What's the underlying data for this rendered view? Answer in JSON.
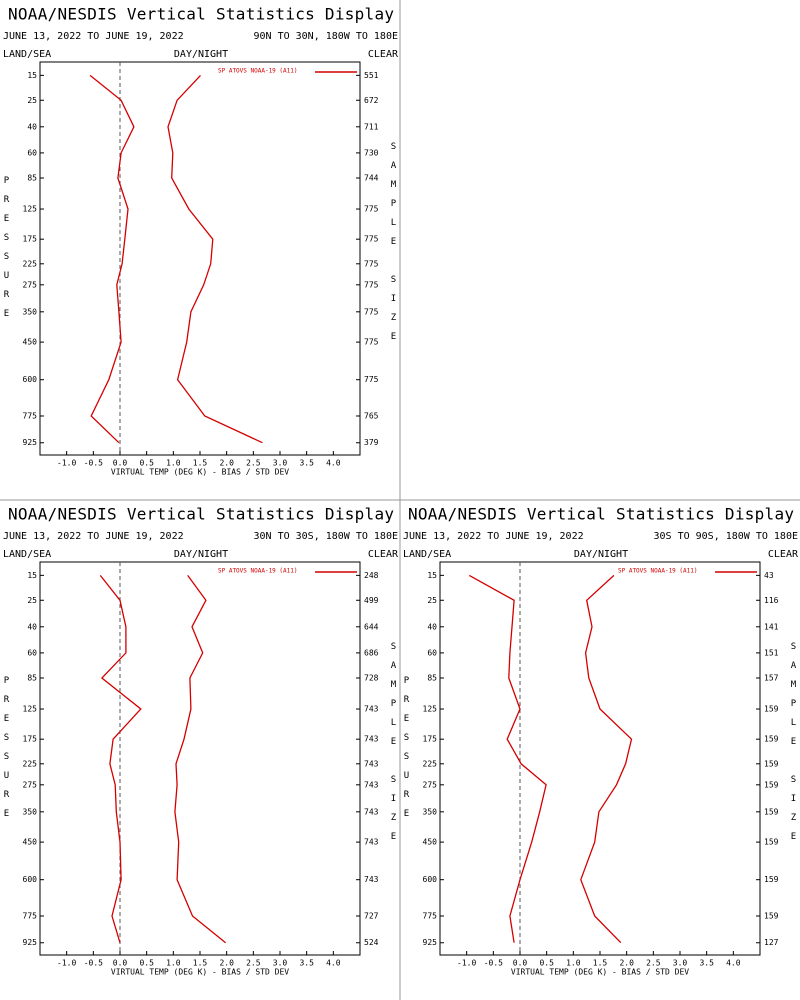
{
  "chart_data": [
    {
      "type": "line",
      "title": "NOAA/NESDIS Vertical Statistics Display",
      "subtitle": "JUNE 13, 2022 TO JUNE 19, 2022",
      "region": "90N TO 30N, 180W TO 180E",
      "left_label": "LAND/SEA",
      "center_label": "DAY/NIGHT",
      "right_label": "CLEAR",
      "ylabel": "PRESSURE",
      "y2label": "SAMPLE SIZE",
      "xlabel": "VIRTUAL TEMP (DEG K) - BIAS / STD DEV",
      "y": [
        15,
        25,
        40,
        60,
        85,
        125,
        175,
        225,
        275,
        350,
        450,
        600,
        775,
        925
      ],
      "sample_size": [
        551,
        672,
        711,
        730,
        744,
        775,
        775,
        775,
        775,
        775,
        775,
        775,
        765,
        379
      ],
      "series": [
        {
          "name": "SP ATOVS NOAA-19 (A11)",
          "color": "#d40000",
          "values": [
            -0.56,
            0.02,
            0.26,
            0.02,
            -0.04,
            0.15,
            0.09,
            0.04,
            -0.06,
            -0.02,
            0.02,
            -0.21,
            -0.54,
            -0.02
          ]
        },
        {
          "color": "#d40000",
          "values": [
            1.51,
            1.07,
            0.9,
            0.99,
            0.97,
            1.29,
            1.74,
            1.7,
            1.57,
            1.33,
            1.25,
            1.08,
            1.59,
            2.67
          ]
        }
      ],
      "xlim": [
        -1.5,
        4.5
      ],
      "ylim": [
        11,
        1000
      ],
      "yscale": "power",
      "ypower": 0.3,
      "yreverse": false,
      "xticks": [
        {
          "value": -1,
          "label": "-1.0"
        },
        -0.5,
        {
          "value": 0,
          "label": "0.0"
        },
        0.5,
        {
          "value": 1,
          "label": "1.0"
        },
        1.5,
        {
          "value": 2,
          "label": "2.0"
        },
        2.5,
        {
          "value": 3,
          "label": "3.0"
        },
        3.5,
        {
          "value": 4,
          "label": "4.0"
        }
      ]
    },
    {
      "type": "line",
      "title": "NOAA/NESDIS Vertical Statistics Display",
      "subtitle": "JUNE 13, 2022 TO JUNE 19, 2022",
      "region": "30N TO 30S, 180W TO 180E",
      "left_label": "LAND/SEA",
      "center_label": "DAY/NIGHT",
      "right_label": "CLEAR",
      "ylabel": "PRESSURE",
      "y2label": "SAMPLE SIZE",
      "xlabel": "VIRTUAL TEMP (DEG K) - BIAS / STD DEV",
      "y": [
        15,
        25,
        40,
        60,
        85,
        125,
        175,
        225,
        275,
        350,
        450,
        600,
        775,
        925
      ],
      "sample_size": [
        248,
        499,
        644,
        686,
        728,
        743,
        743,
        743,
        743,
        743,
        743,
        743,
        727,
        524
      ],
      "series": [
        {
          "name": "SP ATOVS NOAA-19 (A11)",
          "color": "#d40000",
          "values": [
            -0.37,
            0.0,
            0.11,
            0.11,
            -0.34,
            0.39,
            -0.13,
            -0.19,
            -0.09,
            -0.07,
            0.0,
            0.02,
            -0.15,
            0.0
          ]
        },
        {
          "color": "#d40000",
          "values": [
            1.27,
            1.61,
            1.35,
            1.55,
            1.31,
            1.33,
            1.2,
            1.05,
            1.07,
            1.03,
            1.1,
            1.07,
            1.36,
            1.98
          ]
        }
      ],
      "xlim": [
        -1.5,
        4.5
      ],
      "ylim": [
        11,
        1000
      ],
      "yscale": "power",
      "ypower": 0.3,
      "yreverse": false,
      "xticks": [
        {
          "value": -1,
          "label": "-1.0"
        },
        -0.5,
        {
          "value": 0,
          "label": "0.0"
        },
        0.5,
        {
          "value": 1,
          "label": "1.0"
        },
        1.5,
        {
          "value": 2,
          "label": "2.0"
        },
        2.5,
        {
          "value": 3,
          "label": "3.0"
        },
        3.5,
        {
          "value": 4,
          "label": "4.0"
        }
      ]
    },
    {
      "type": "line",
      "title": "NOAA/NESDIS Vertical Statistics Display",
      "subtitle": "JUNE 13, 2022 TO JUNE 19, 2022",
      "region": "30S TO 90S, 180W TO 180E",
      "left_label": "LAND/SEA",
      "center_label": "DAY/NIGHT",
      "right_label": "CLEAR",
      "ylabel": "PRESSURE",
      "y2label": "SAMPLE SIZE",
      "xlabel": "VIRTUAL TEMP (DEG K) - BIAS / STD DEV",
      "y": [
        15,
        25,
        40,
        60,
        85,
        125,
        175,
        225,
        275,
        350,
        450,
        600,
        775,
        925
      ],
      "sample_size": [
        43,
        116,
        141,
        151,
        157,
        159,
        159,
        159,
        159,
        159,
        159,
        159,
        159,
        127
      ],
      "series": [
        {
          "name": "SP ATOVS NOAA-19 (A11)",
          "color": "#d40000",
          "values": [
            -0.95,
            -0.11,
            -0.15,
            -0.19,
            -0.21,
            0.0,
            -0.24,
            0.02,
            0.49,
            0.37,
            0.22,
            0.0,
            -0.19,
            -0.11
          ]
        },
        {
          "color": "#d40000",
          "values": [
            1.76,
            1.25,
            1.35,
            1.23,
            1.29,
            1.5,
            2.09,
            1.98,
            1.81,
            1.48,
            1.4,
            1.14,
            1.4,
            1.89
          ]
        }
      ],
      "xlim": [
        -1.5,
        4.5
      ],
      "ylim": [
        11,
        1000
      ],
      "yscale": "power",
      "ypower": 0.3,
      "yreverse": false,
      "xticks": [
        {
          "value": -1,
          "label": "-1.0"
        },
        -0.5,
        {
          "value": 0,
          "label": "0.0"
        },
        0.5,
        {
          "value": 1,
          "label": "1.0"
        },
        1.5,
        {
          "value": 2,
          "label": "2.0"
        },
        2.5,
        {
          "value": 3,
          "label": "3.0"
        },
        3.5,
        {
          "value": 4,
          "label": "4.0"
        }
      ]
    }
  ]
}
